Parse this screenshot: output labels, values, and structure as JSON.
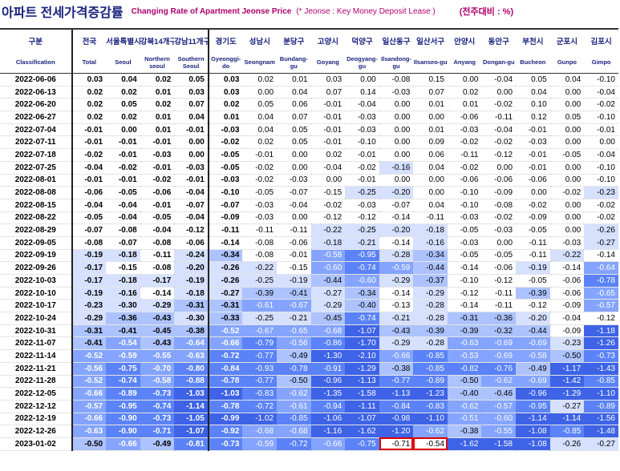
{
  "title": {
    "korean": "아파트 전세가격증감률",
    "english": "Changing Rate of Apartment Jeonse Price",
    "note": "(* Jeonse : Key Money Deposit Lease )",
    "unit": "(전주대비 : %)"
  },
  "columns_ko": [
    "구분",
    "전국",
    "서울특별시",
    "강북14개구",
    "강남11개구",
    "경기도",
    "성남시",
    "분당구",
    "고양시",
    "덕양구",
    "일산동구",
    "일산서구",
    "안양시",
    "동안구",
    "부천시",
    "군포시",
    "김포시"
  ],
  "columns_en": [
    "Classification",
    "Total",
    "Seoul",
    "Northern seoul",
    "Southern Seoul",
    "Gyeonggi-do",
    "Seongnam",
    "Bundang-gu",
    "Goyang",
    "Deogyang-gu",
    "Ilsandong-gu",
    "Ilsanseo-gu",
    "Anyang",
    "Dongan-gu",
    "Bucheon",
    "Gunpo",
    "Gimpo"
  ],
  "rows": [
    {
      "date": "2022-06-06",
      "values": [
        "0.03",
        "0.04",
        "0.02",
        "0.05",
        "0.03",
        "0.02",
        "0.01",
        "0.03",
        "0.00",
        "-0.08",
        "0.15",
        "0.00",
        "-0.04",
        "0.05",
        "0.04",
        "-0.10"
      ]
    },
    {
      "date": "2022-06-13",
      "values": [
        "0.02",
        "0.02",
        "0.01",
        "0.03",
        "0.03",
        "0.00",
        "0.04",
        "0.07",
        "0.14",
        "-0.03",
        "0.07",
        "0.02",
        "0.00",
        "0.04",
        "0.00",
        "-0.04"
      ]
    },
    {
      "date": "2022-06-20",
      "values": [
        "0.02",
        "0.05",
        "0.02",
        "0.07",
        "0.02",
        "0.05",
        "0.06",
        "-0.01",
        "-0.04",
        "0.00",
        "0.01",
        "0.01",
        "-0.02",
        "0.10",
        "0.00",
        "-0.02"
      ]
    },
    {
      "date": "2022-06-27",
      "values": [
        "0.02",
        "0.02",
        "0.01",
        "0.04",
        "0.01",
        "0.04",
        "0.07",
        "-0.01",
        "-0.03",
        "0.00",
        "0.00",
        "-0.06",
        "-0.11",
        "0.12",
        "0.05",
        "-0.10"
      ]
    },
    {
      "date": "2022-07-04",
      "values": [
        "-0.01",
        "0.00",
        "0.01",
        "-0.01",
        "-0.03",
        "0.04",
        "0.05",
        "-0.01",
        "-0.03",
        "0.00",
        "0.01",
        "-0.03",
        "-0.04",
        "-0.01",
        "0.00",
        "-0.01"
      ]
    },
    {
      "date": "2022-07-11",
      "values": [
        "-0.01",
        "-0.01",
        "-0.01",
        "0.00",
        "-0.02",
        "0.02",
        "0.05",
        "-0.01",
        "-0.10",
        "0.00",
        "0.09",
        "-0.02",
        "-0.02",
        "-0.03",
        "0.00",
        "0.00"
      ]
    },
    {
      "date": "2022-07-18",
      "values": [
        "-0.02",
        "-0.01",
        "-0.03",
        "0.00",
        "-0.05",
        "-0.01",
        "0.00",
        "0.02",
        "-0.01",
        "0.00",
        "0.06",
        "-0.11",
        "-0.12",
        "-0.01",
        "-0.05",
        "-0.04"
      ]
    },
    {
      "date": "2022-07-25",
      "values": [
        "-0.04",
        "-0.02",
        "-0.01",
        "-0.03",
        "-0.05",
        "-0.02",
        "0.00",
        "-0.04",
        "-0.02",
        "-0.16",
        "0.04",
        "-0.02",
        "0.00",
        "-0.01",
        "0.00",
        "-0.10"
      ]
    },
    {
      "date": "2022-08-01",
      "values": [
        "-0.01",
        "-0.01",
        "-0.02",
        "-0.01",
        "-0.03",
        "-0.02",
        "-0.03",
        "0.00",
        "-0.01",
        "0.00",
        "0.00",
        "-0.06",
        "-0.06",
        "-0.06",
        "0.00",
        "-0.10"
      ]
    },
    {
      "date": "2022-08-08",
      "values": [
        "-0.06",
        "-0.05",
        "-0.06",
        "-0.04",
        "-0.10",
        "-0.05",
        "-0.07",
        "-0.15",
        "-0.25",
        "-0.20",
        "0.00",
        "-0.10",
        "-0.09",
        "0.00",
        "-0.02",
        "-0.23"
      ]
    },
    {
      "date": "2022-08-15",
      "values": [
        "-0.04",
        "-0.04",
        "-0.01",
        "-0.07",
        "-0.07",
        "-0.03",
        "-0.04",
        "-0.02",
        "-0.03",
        "-0.07",
        "0.04",
        "-0.10",
        "-0.08",
        "-0.02",
        "0.00",
        "-0.02"
      ]
    },
    {
      "date": "2022-08-22",
      "values": [
        "-0.05",
        "-0.04",
        "-0.05",
        "-0.04",
        "-0.09",
        "-0.03",
        "0.00",
        "-0.12",
        "-0.12",
        "-0.14",
        "-0.11",
        "-0.03",
        "-0.02",
        "-0.09",
        "0.00",
        "-0.02"
      ]
    },
    {
      "date": "2022-08-29",
      "values": [
        "-0.07",
        "-0.08",
        "-0.04",
        "-0.12",
        "-0.11",
        "-0.11",
        "-0.11",
        "-0.22",
        "-0.25",
        "-0.20",
        "-0.18",
        "-0.05",
        "-0.03",
        "-0.05",
        "0.00",
        "-0.26"
      ]
    },
    {
      "date": "2022-09-05",
      "values": [
        "-0.08",
        "-0.07",
        "-0.08",
        "-0.06",
        "-0.14",
        "-0.08",
        "-0.06",
        "-0.18",
        "-0.21",
        "-0.14",
        "-0.16",
        "-0.03",
        "0.00",
        "-0.11",
        "-0.03",
        "-0.27"
      ]
    },
    {
      "date": "2022-09-19",
      "values": [
        "-0.19",
        "-0.18",
        "-0.11",
        "-0.24",
        "-0.34",
        "-0.08",
        "-0.01",
        "-0.58",
        "-0.95",
        "-0.28",
        "-0.34",
        "-0.05",
        "-0.05",
        "-0.11",
        "-0.22",
        "-0.14"
      ]
    },
    {
      "date": "2022-09-26",
      "values": [
        "-0.17",
        "-0.15",
        "-0.08",
        "-0.20",
        "-0.26",
        "-0.22",
        "-0.15",
        "-0.60",
        "-0.74",
        "-0.59",
        "-0.44",
        "-0.14",
        "-0.06",
        "-0.19",
        "-0.14",
        "-0.64"
      ]
    },
    {
      "date": "2022-10-03",
      "values": [
        "-0.17",
        "-0.18",
        "-0.17",
        "-0.19",
        "-0.26",
        "-0.25",
        "-0.19",
        "-0.44",
        "-0.60",
        "-0.29",
        "-0.37",
        "-0.10",
        "-0.12",
        "-0.05",
        "-0.06",
        "-0.78"
      ]
    },
    {
      "date": "2022-10-10",
      "values": [
        "-0.19",
        "-0.16",
        "-0.14",
        "-0.18",
        "-0.27",
        "-0.39",
        "-0.41",
        "-0.27",
        "-0.34",
        "-0.14",
        "-0.29",
        "-0.12",
        "-0.11",
        "-0.39",
        "-0.06",
        "-0.65"
      ]
    },
    {
      "date": "2022-10-17",
      "values": [
        "-0.23",
        "-0.30",
        "-0.29",
        "-0.31",
        "-0.31",
        "-0.61",
        "-0.67",
        "-0.29",
        "-0.40",
        "-0.13",
        "-0.28",
        "-0.14",
        "-0.11",
        "-0.12",
        "-0.09",
        "-0.57"
      ]
    },
    {
      "date": "2022-10-24",
      "values": [
        "-0.29",
        "-0.36",
        "-0.43",
        "-0.30",
        "-0.33",
        "-0.25",
        "-0.21",
        "-0.45",
        "-0.74",
        "-0.21",
        "-0.28",
        "-0.31",
        "-0.36",
        "-0.20",
        "-0.04",
        "-0.12"
      ]
    },
    {
      "date": "2022-10-31",
      "values": [
        "-0.31",
        "-0.41",
        "-0.45",
        "-0.38",
        "-0.52",
        "-0.67",
        "-0.65",
        "-0.68",
        "-1.07",
        "-0.43",
        "-0.39",
        "-0.39",
        "-0.32",
        "-0.44",
        "-0.09",
        "-1.18"
      ]
    },
    {
      "date": "2022-11-07",
      "values": [
        "-0.41",
        "-0.54",
        "-0.43",
        "-0.64",
        "-0.66",
        "-0.79",
        "-0.56",
        "-0.86",
        "-1.70",
        "-0.29",
        "-0.28",
        "-0.63",
        "-0.69",
        "-0.69",
        "-0.23",
        "-1.26"
      ]
    },
    {
      "date": "2022-11-14",
      "values": [
        "-0.52",
        "-0.59",
        "-0.55",
        "-0.63",
        "-0.72",
        "-0.77",
        "-0.49",
        "-1.30",
        "-2.10",
        "-0.66",
        "-0.85",
        "-0.53",
        "-0.69",
        "-0.58",
        "-0.50",
        "-0.73"
      ]
    },
    {
      "date": "2022-11-21",
      "values": [
        "-0.56",
        "-0.75",
        "-0.70",
        "-0.80",
        "-0.84",
        "-0.93",
        "-0.78",
        "-0.91",
        "-1.29",
        "-0.38",
        "-0.85",
        "-0.82",
        "-0.76",
        "-0.49",
        "-1.17",
        "-1.43"
      ]
    },
    {
      "date": "2022-11-28",
      "values": [
        "-0.52",
        "-0.74",
        "-0.58",
        "-0.88",
        "-0.78",
        "-0.77",
        "-0.50",
        "-0.96",
        "-1.13",
        "-0.77",
        "-0.89",
        "-0.50",
        "-0.62",
        "-0.69",
        "-1.42",
        "-0.85"
      ]
    },
    {
      "date": "2022-12-05",
      "values": [
        "-0.66",
        "-0.89",
        "-0.73",
        "-1.03",
        "-1.03",
        "-0.83",
        "-0.62",
        "-1.35",
        "-1.58",
        "-1.13",
        "-1.23",
        "-0.40",
        "-0.46",
        "-0.96",
        "-1.29",
        "-1.10"
      ]
    },
    {
      "date": "2022-12-12",
      "values": [
        "-0.57",
        "-0.95",
        "-0.74",
        "-1.14",
        "-0.78",
        "-0.72",
        "-0.61",
        "-0.94",
        "-1.11",
        "-0.84",
        "-0.83",
        "-0.62",
        "-0.57",
        "-0.95",
        "-0.27",
        "-0.89"
      ]
    },
    {
      "date": "2022-12-19",
      "values": [
        "-0.66",
        "-0.90",
        "-0.73",
        "-1.05",
        "-0.99",
        "-1.02",
        "-0.85",
        "-1.06",
        "-1.07",
        "-0.98",
        "-1.10",
        "-0.51",
        "-0.60",
        "-1.14",
        "-1.14",
        "-1.56"
      ]
    },
    {
      "date": "2022-12-26",
      "values": [
        "-0.63",
        "-0.90",
        "-0.71",
        "-1.07",
        "-0.92",
        "-0.68",
        "-0.68",
        "-1.16",
        "-1.62",
        "-1.20",
        "-0.62",
        "-0.38",
        "-0.55",
        "-1.08",
        "-0.85",
        "-1.48"
      ]
    },
    {
      "date": "2023-01-02",
      "values": [
        "-0.50",
        "-0.66",
        "-0.49",
        "-0.81",
        "-0.73",
        "-0.59",
        "-0.72",
        "-0.66",
        "-0.75",
        "-0.71",
        "-0.54",
        "-1.62",
        "-1.58",
        "-1.08",
        "-0.26",
        "-0.27"
      ]
    }
  ],
  "highlight": {
    "row": "2023-01-02",
    "columns": [
      "Ilsandong-gu",
      "Ilsanseo-gu"
    ],
    "border_color": "#e00000"
  },
  "colors": {
    "title_navy": "#1a237e",
    "title_magenta": "#b0006d",
    "header_text": "#1a237e",
    "heat_scale": [
      "#ffffff",
      "#d6e0ff",
      "#adc3ff",
      "#84a4ff",
      "#5b83f7",
      "#3e63e6"
    ]
  }
}
